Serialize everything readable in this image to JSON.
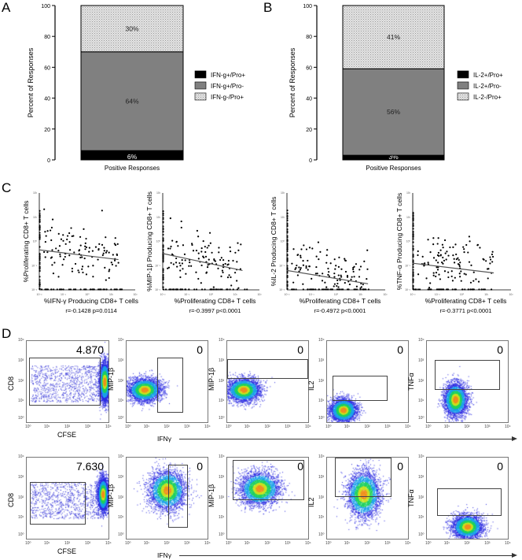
{
  "panels": {
    "A": "A",
    "B": "B",
    "C": "C",
    "D": "D"
  },
  "chart_data": [
    {
      "type": "bar",
      "stacked": true,
      "panel": "A",
      "categories": [
        "Positive Responses"
      ],
      "ylabel": "Percent of Responses",
      "ylim": [
        0,
        100
      ],
      "yticks": [
        "0",
        "20",
        "40",
        "60",
        "80",
        "100"
      ],
      "series": [
        {
          "name": "IFN-g+/Pro+",
          "values": [
            6
          ],
          "label": "6%",
          "color": "#000000"
        },
        {
          "name": "IFN-g+/Pro-",
          "values": [
            64
          ],
          "label": "64%",
          "color": "#808080"
        },
        {
          "name": "IFN-g-/Pro+",
          "values": [
            30
          ],
          "label": "30%",
          "color": "stipple"
        }
      ],
      "legend": "right"
    },
    {
      "type": "bar",
      "stacked": true,
      "panel": "B",
      "categories": [
        "Positive Responses"
      ],
      "ylabel": "Percent of Responses",
      "ylim": [
        0,
        100
      ],
      "yticks": [
        "0",
        "20",
        "40",
        "60",
        "80",
        "100"
      ],
      "series": [
        {
          "name": "IL-2+/Pro+",
          "values": [
            3
          ],
          "label": "3%",
          "color": "#000000"
        },
        {
          "name": "IL-2+/Pro-",
          "values": [
            56
          ],
          "label": "56%",
          "color": "#808080"
        },
        {
          "name": "IL-2-/Pro+",
          "values": [
            41
          ],
          "label": "41%",
          "color": "stipple"
        }
      ],
      "legend": "right"
    },
    {
      "type": "scatter",
      "panel": "C1",
      "xscale": "log",
      "xlim": [
        0.01,
        100
      ],
      "ylim": [
        0.01,
        100
      ],
      "ylabel": "%Proliferating CD8+ T cells",
      "xlabel": "%IFN-γ Producing CD8+ T cells",
      "stat": "r=-0.1428 p=0.0114",
      "fit_log10": [
        [
          -2,
          -0.35
        ],
        [
          1.3,
          -0.75
        ]
      ]
    },
    {
      "type": "scatter",
      "panel": "C2",
      "xscale": "log",
      "xlim": [
        0.01,
        100
      ],
      "ylim": [
        0.01,
        100
      ],
      "ylabel": "%MIP-1β Producing CD8+ T cells",
      "xlabel": "%Proliferating CD8+ T cells",
      "stat": "r=-0.3997 p<0.0001",
      "fit_log10": [
        [
          -2,
          -0.5
        ],
        [
          1.3,
          -1.2
        ]
      ]
    },
    {
      "type": "scatter",
      "panel": "C3",
      "xscale": "log",
      "xlim": [
        0.01,
        100
      ],
      "ylim": [
        0.01,
        100
      ],
      "ylabel": "%IL-2 Producing CD8+ T cells",
      "xlabel": "%Proliferating CD8+ T cells",
      "stat": "r=-0.4972 p<0.0001",
      "fit_log10": [
        [
          -2,
          -1.2
        ],
        [
          1.3,
          -1.75
        ]
      ]
    },
    {
      "type": "scatter",
      "panel": "C4",
      "xscale": "log",
      "xlim": [
        0.01,
        100
      ],
      "ylim": [
        0.01,
        100
      ],
      "ylabel": "%TNF-α Producing CD8+ T cells",
      "xlabel": "%Proliferating CD8+ T cells",
      "stat": "r=-0.3771 p<0.0001",
      "fit_log10": [
        [
          -2,
          -0.9
        ],
        [
          1.3,
          -1.3
        ]
      ]
    }
  ],
  "log_ticks": [
    "10⁻²",
    "10⁻¹",
    "10⁰",
    "10¹",
    "10²"
  ],
  "flow_ticks": [
    "10⁰",
    "10¹",
    "10²",
    "10³",
    "10⁴"
  ],
  "flow": {
    "rows": [
      {
        "plots": [
          {
            "y": "CD8",
            "x": "CFSE",
            "value": "4.870"
          },
          {
            "y": "MIP-1β",
            "value": "0"
          },
          {
            "y": "MIP-1β",
            "value": "0"
          },
          {
            "y": "IL2",
            "value": "0"
          },
          {
            "y": "TNFα",
            "value": "0"
          }
        ],
        "shared_x": "IFNγ"
      },
      {
        "plots": [
          {
            "y": "CD8",
            "x": "CFSE",
            "value": "7.630"
          },
          {
            "y": "MIP-1β",
            "value": "0"
          },
          {
            "y": "MIP-1β",
            "value": "0"
          },
          {
            "y": "IL2",
            "value": "0"
          },
          {
            "y": "TNFα",
            "value": "0"
          }
        ],
        "shared_x": "IFNγ"
      }
    ]
  }
}
